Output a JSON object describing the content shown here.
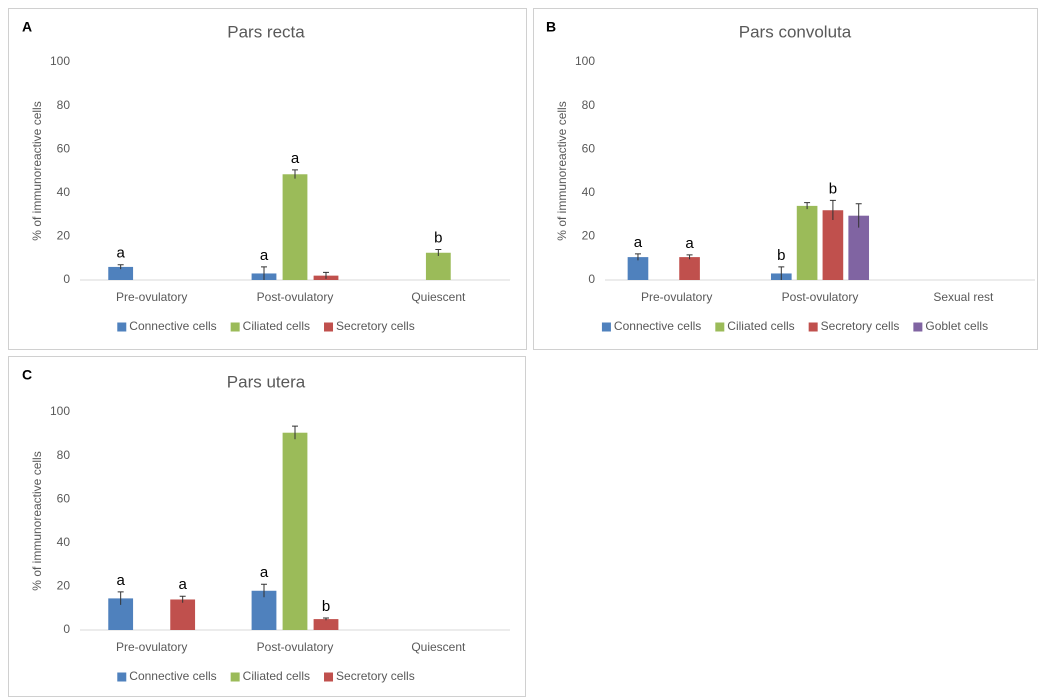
{
  "chart_data": [
    {
      "type": "bar",
      "panel_label": "A",
      "title": "Pars recta",
      "ylabel": "% of immunoreactive cells",
      "categories": [
        "Pre-ovulatory",
        "Post-ovulatory",
        "Quiescent"
      ],
      "ylim": [
        0,
        100
      ],
      "yticks": [
        0,
        20,
        40,
        60,
        80,
        100
      ],
      "series": [
        {
          "name": "Connective cells",
          "color": "#4f81bd",
          "values": [
            6,
            3,
            null
          ],
          "errors": [
            1,
            3,
            null
          ],
          "labels": [
            "a",
            "a",
            null
          ]
        },
        {
          "name": "Ciliated cells",
          "color": "#9bbb59",
          "values": [
            null,
            48.5,
            12.5
          ],
          "errors": [
            null,
            2,
            1.5
          ],
          "labels": [
            null,
            "a",
            "b"
          ]
        },
        {
          "name": "Secretory cells",
          "color": "#c0504d",
          "values": [
            null,
            2,
            null
          ],
          "errors": [
            null,
            1.5,
            null
          ],
          "labels": [
            null,
            null,
            null
          ]
        }
      ]
    },
    {
      "type": "bar",
      "panel_label": "B",
      "title": "Pars convoluta",
      "ylabel": "% of immunoreactive cells",
      "categories": [
        "Pre-ovulatory",
        "Post-ovulatory",
        "Sexual rest"
      ],
      "ylim": [
        0,
        100
      ],
      "yticks": [
        0,
        20,
        40,
        60,
        80,
        100
      ],
      "series": [
        {
          "name": "Connective cells",
          "color": "#4f81bd",
          "values": [
            10.5,
            3,
            null
          ],
          "errors": [
            1.5,
            3,
            null
          ],
          "labels": [
            "a",
            "b",
            null
          ]
        },
        {
          "name": "Ciliated cells",
          "color": "#9bbb59",
          "values": [
            null,
            34,
            null
          ],
          "errors": [
            null,
            1.5,
            null
          ],
          "labels": [
            null,
            null,
            null
          ]
        },
        {
          "name": "Secretory cells",
          "color": "#c0504d",
          "values": [
            10.5,
            32,
            null
          ],
          "errors": [
            1,
            4.5,
            null
          ],
          "labels": [
            "a",
            "b",
            null
          ]
        },
        {
          "name": "Goblet cells",
          "color": "#8064a2",
          "values": [
            null,
            29.5,
            null
          ],
          "errors": [
            null,
            5.5,
            null
          ],
          "labels": [
            null,
            null,
            null
          ]
        }
      ]
    },
    {
      "type": "bar",
      "panel_label": "C",
      "title": "Pars utera",
      "ylabel": "% of immunoreactive cells",
      "categories": [
        "Pre-ovulatory",
        "Post-ovulatory",
        "Quiescent"
      ],
      "ylim": [
        0,
        100
      ],
      "yticks": [
        0,
        20,
        40,
        60,
        80,
        100
      ],
      "series": [
        {
          "name": "Connective cells",
          "color": "#4f81bd",
          "values": [
            14.5,
            18,
            null
          ],
          "errors": [
            3,
            3,
            null
          ],
          "labels": [
            "a",
            "a",
            null
          ]
        },
        {
          "name": "Ciliated cells",
          "color": "#9bbb59",
          "values": [
            null,
            90.5,
            null
          ],
          "errors": [
            null,
            3,
            null
          ],
          "labels": [
            null,
            null,
            null
          ]
        },
        {
          "name": "Secretory cells",
          "color": "#c0504d",
          "values": [
            14,
            5,
            null
          ],
          "errors": [
            1.5,
            0.5,
            null
          ],
          "labels": [
            "a",
            "b",
            null
          ]
        }
      ]
    }
  ]
}
